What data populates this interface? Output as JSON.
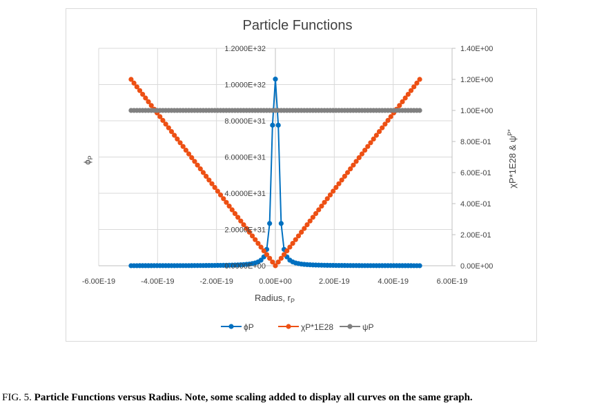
{
  "chart_data": {
    "type": "line",
    "title": "Particle Functions",
    "xlabel": "Radius, r",
    "xlabel_sub": "P",
    "ylabel_left": "ϕ",
    "ylabel_left_sub": "P",
    "ylabel_right": "χP*1E28 & ψ",
    "ylabel_right_sub": "P*",
    "xlim": [
      -6e-19,
      6e-19
    ],
    "xticks": [
      "-6.00E-19",
      "-4.00E-19",
      "-2.00E-19",
      "0.00E+00",
      "2.00E-19",
      "4.00E-19",
      "6.00E-19"
    ],
    "ylim_left": [
      0,
      1.2e+32
    ],
    "yticks_left": [
      "0.0000E+00",
      "2.0000E+31",
      "4.0000E+31",
      "6.0000E+31",
      "8.0000E+31",
      "1.0000E+32",
      "1.2000E+32"
    ],
    "ylim_right": [
      0,
      1.4
    ],
    "yticks_right": [
      "0.00E+00",
      "2.00E-01",
      "4.00E-01",
      "6.00E-01",
      "8.00E-01",
      "1.00E+00",
      "1.20E+00",
      "1.40E+00"
    ],
    "grid": true,
    "legend_position": "bottom",
    "series": [
      {
        "name": "ϕP",
        "axis": "left",
        "color": "#0070C0",
        "x_range": [
          -4.9e-19,
          4.9e-19
        ],
        "points": 101,
        "model": "peak-at-zero",
        "peak_value": 1.03e+32
      },
      {
        "name": "χP*1E28",
        "axis": "right",
        "color": "#ED5014",
        "x_range": [
          -4.9e-19,
          4.9e-19
        ],
        "points": 101,
        "model": "abs-linear",
        "value_at_edge": 1.2
      },
      {
        "name": "ψP",
        "axis": "right",
        "color": "#808080",
        "x_range": [
          -4.9e-19,
          4.9e-19
        ],
        "points": 101,
        "model": "constant",
        "value": 1.0
      }
    ]
  },
  "caption": {
    "prefix": "FIG. 5. ",
    "text": "Particle Functions versus Radius. Note, some scaling added to display all curves on the same graph."
  }
}
